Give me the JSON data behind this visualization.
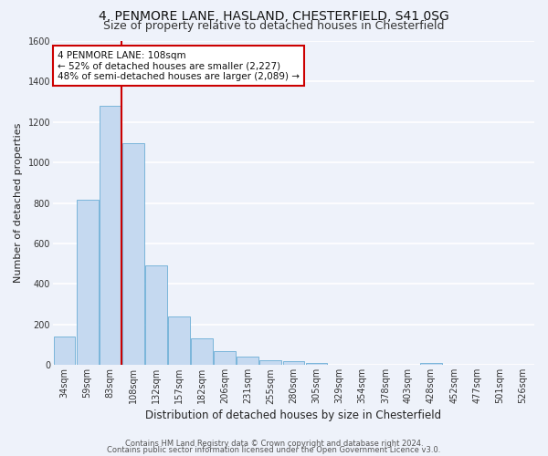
{
  "title": "4, PENMORE LANE, HASLAND, CHESTERFIELD, S41 0SG",
  "subtitle": "Size of property relative to detached houses in Chesterfield",
  "xlabel": "Distribution of detached houses by size in Chesterfield",
  "ylabel": "Number of detached properties",
  "categories": [
    "34sqm",
    "59sqm",
    "83sqm",
    "108sqm",
    "132sqm",
    "157sqm",
    "182sqm",
    "206sqm",
    "231sqm",
    "255sqm",
    "280sqm",
    "305sqm",
    "329sqm",
    "354sqm",
    "378sqm",
    "403sqm",
    "428sqm",
    "452sqm",
    "477sqm",
    "501sqm",
    "526sqm"
  ],
  "values": [
    140,
    815,
    1280,
    1095,
    490,
    240,
    130,
    70,
    40,
    22,
    20,
    10,
    0,
    0,
    0,
    0,
    10,
    0,
    0,
    0,
    0
  ],
  "bar_color": "#c5d9f0",
  "bar_edge_color": "#6baed6",
  "vline_color": "#cc0000",
  "annotation_box_line1": "4 PENMORE LANE: 108sqm",
  "annotation_box_line2": "← 52% of detached houses are smaller (2,227)",
  "annotation_box_line3": "48% of semi-detached houses are larger (2,089) →",
  "annotation_box_color": "#cc0000",
  "ylim": [
    0,
    1600
  ],
  "yticks": [
    0,
    200,
    400,
    600,
    800,
    1000,
    1200,
    1400,
    1600
  ],
  "background_color": "#eef2fa",
  "grid_color": "#ffffff",
  "footer_line1": "Contains HM Land Registry data © Crown copyright and database right 2024.",
  "footer_line2": "Contains public sector information licensed under the Open Government Licence v3.0.",
  "title_fontsize": 10,
  "subtitle_fontsize": 9,
  "xlabel_fontsize": 8.5,
  "ylabel_fontsize": 8,
  "tick_fontsize": 7,
  "footer_fontsize": 6,
  "annot_fontsize": 7.5
}
